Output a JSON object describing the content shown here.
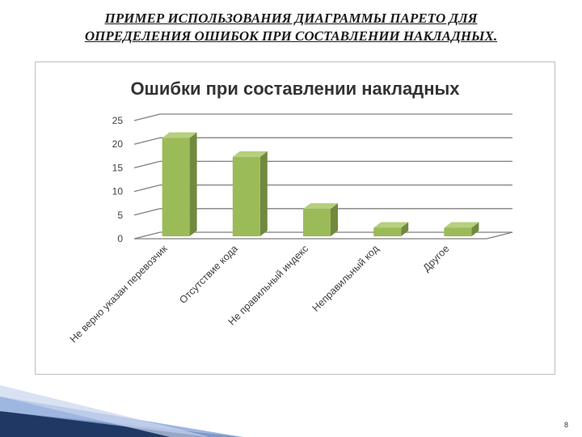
{
  "slide": {
    "title_line1": "ПРИМЕР ИСПОЛЬЗОВАНИЯ ДИАГРАММЫ ПАРЕТО ДЛЯ",
    "title_line2": "ОПРЕДЕЛЕНИЯ ОШИБОК ПРИ СОСТАВЛЕНИИ НАКЛАДНЫХ.",
    "page_number": "8"
  },
  "colors": {
    "bar_front": "#9bbb59",
    "bar_side": "#71893f",
    "bar_top": "#b5cf7d",
    "gridline": "#7f7f7f",
    "corner_dark": "#1f3864",
    "corner_light": "#8ea9db"
  },
  "chart_data": {
    "type": "bar",
    "title": "Ошибки при составлении накладных",
    "categories": [
      "Не верно указан перевозчик",
      "Отсутствие кода",
      "Не правильный индекс",
      "Неправильный код",
      "Другое"
    ],
    "values": [
      22,
      18,
      7,
      3,
      3
    ],
    "ylim": [
      0,
      25
    ],
    "yticks": [
      "0",
      "5",
      "10",
      "15",
      "20",
      "25"
    ],
    "grid": true,
    "legend": "none",
    "three_d": true
  }
}
